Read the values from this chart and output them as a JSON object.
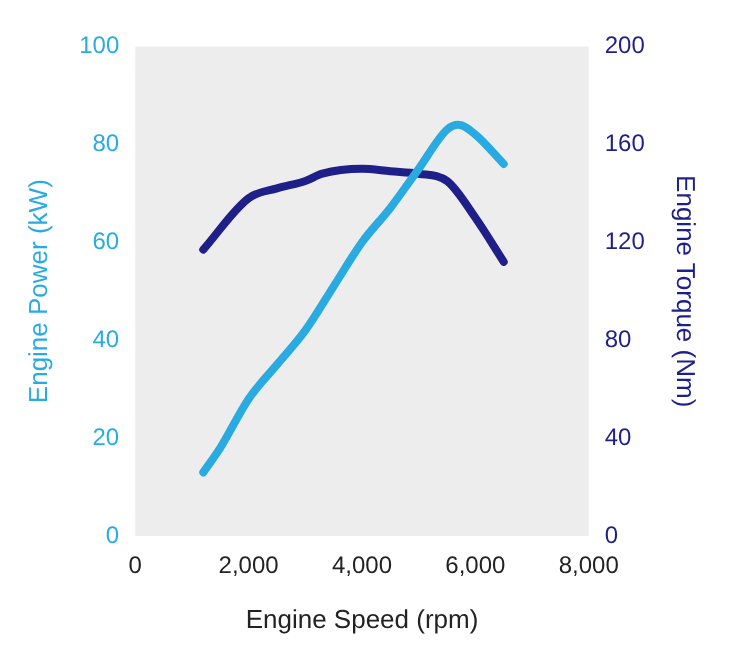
{
  "chart_data": {
    "type": "line",
    "xlabel": "Engine Speed (rpm)",
    "ylabel": "Engine Power (kW)",
    "y2label": "Engine Torque (Nm)",
    "xlim": [
      0,
      8000
    ],
    "xticks": [
      0,
      {
        "value": 2000,
        "label": "2,000"
      },
      {
        "value": 4000,
        "label": "4,000"
      },
      {
        "value": 6000,
        "label": "6,000"
      },
      {
        "value": 8000,
        "label": "8,000"
      }
    ],
    "ylim": [
      0,
      100
    ],
    "yticks": [
      0,
      20,
      40,
      60,
      80,
      100
    ],
    "y2lim": [
      0,
      200
    ],
    "y2ticks": [
      0,
      40,
      80,
      120,
      160,
      200
    ],
    "grid": false,
    "legend": false,
    "marker": "none",
    "line_style": "solid",
    "series": [
      {
        "color": "#29abe2",
        "x": [
          1200,
          1500,
          2000,
          2500,
          3000,
          3500,
          4000,
          4500,
          5000,
          5500,
          5700,
          6000,
          6500
        ],
        "values": [
          13,
          18,
          28,
          35,
          42,
          51,
          60,
          67,
          75,
          83,
          84,
          82,
          76
        ]
      },
      {
        "color": "#1f1f8a",
        "axis": "y2",
        "x": [
          1200,
          2000,
          2500,
          3000,
          3300,
          4000,
          4500,
          5000,
          5500,
          6000,
          6500
        ],
        "values": [
          117,
          138,
          142,
          145,
          148,
          150,
          149,
          148,
          145,
          130,
          112
        ]
      }
    ]
  }
}
